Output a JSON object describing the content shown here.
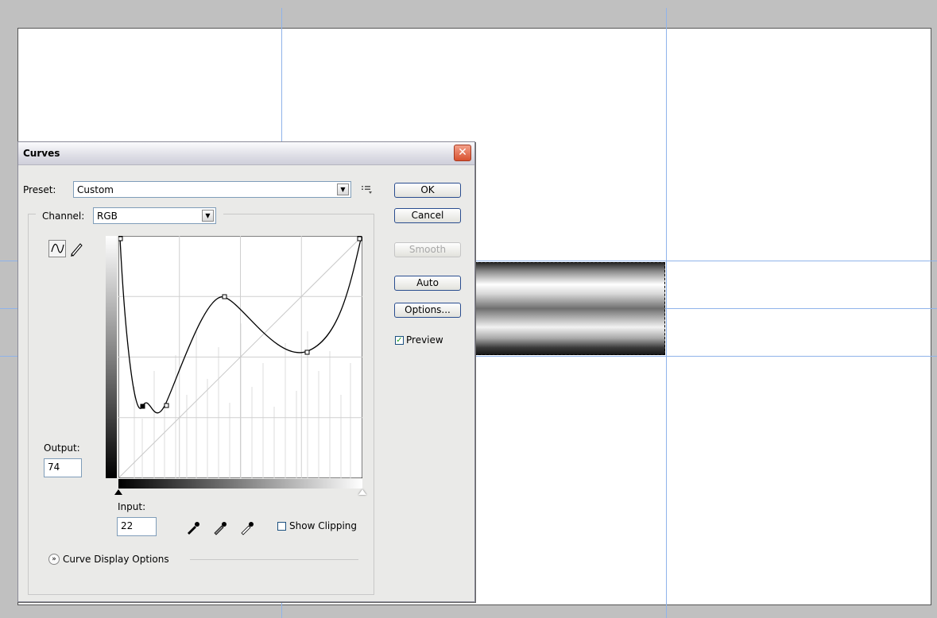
{
  "dialog": {
    "title": "Curves",
    "preset_label": "Preset:",
    "preset_value": "Custom",
    "channel_label": "Channel:",
    "channel_value": "RGB",
    "output_label": "Output:",
    "output_value": "74",
    "input_label": "Input:",
    "input_value": "22",
    "show_clipping_label": "Show Clipping",
    "curve_display_options_label": "Curve Display Options",
    "buttons": {
      "ok": "OK",
      "cancel": "Cancel",
      "smooth": "Smooth",
      "auto": "Auto",
      "options": "Options..."
    },
    "preview_label": "Preview",
    "preview_checked": true,
    "show_clipping_checked": false
  },
  "icons": {
    "close": "close-icon",
    "preset_menu": "preset-options-icon",
    "curve_tool": "curve-tool-icon",
    "pencil_tool": "pencil-tool-icon",
    "black_eyedropper": "black-point-eyedropper-icon",
    "gray_eyedropper": "gray-point-eyedropper-icon",
    "white_eyedropper": "white-point-eyedropper-icon",
    "expand": "expand-chevron-icon"
  },
  "colors": {
    "guide": "#8fb3ea",
    "close_button": "#d8512f",
    "button_border": "#2a4d8f"
  }
}
